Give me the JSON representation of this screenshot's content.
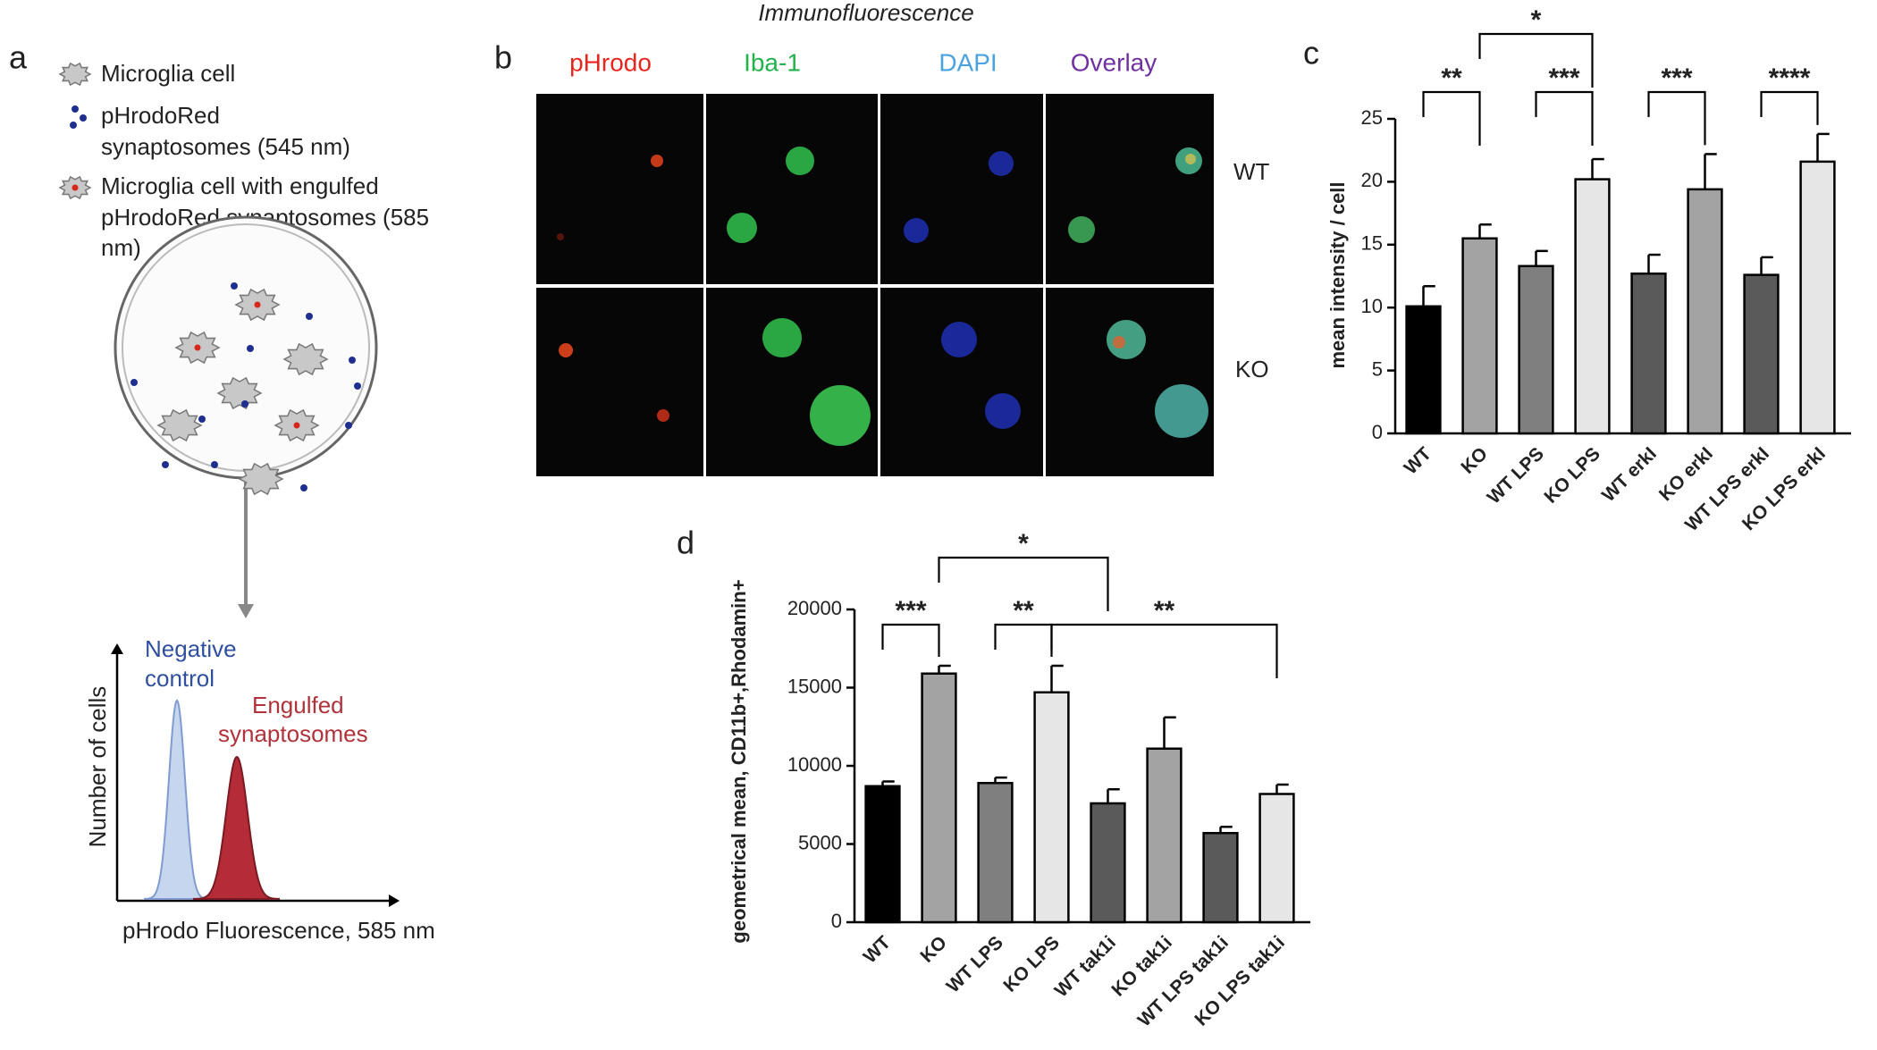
{
  "panel_labels": [
    "a",
    "b",
    "c",
    "d"
  ],
  "schematic": {
    "legend": [
      [
        "Microglia cell"
      ],
      [
        "pHrodoRed",
        "synaptosomes (545 nm)"
      ],
      [
        "Microglia cell with engulfed",
        "pHrodoRed synaptosomes (585",
        "nm)"
      ]
    ],
    "histogram": {
      "series": [
        [
          "Negative",
          "control"
        ],
        [
          "Engulfed",
          "synaptosomes"
        ]
      ],
      "y_label": "Number of cells",
      "x_label": "pHrodo Fluorescence, 585 nm"
    }
  },
  "microscopy": {
    "title": "Immunofluorescence",
    "columns": [
      "pHrodo",
      "Iba-1",
      "DAPI",
      "Overlay"
    ],
    "rows": [
      "WT",
      "KO"
    ]
  },
  "chart_data": [
    {
      "type": "bar",
      "y_label": "mean intensity / cell",
      "categories": [
        "WT",
        "KO",
        "WT LPS",
        "KO LPS",
        "WT erkI",
        "KO erkI",
        "WT LPS erkI",
        "KO LPS erkI"
      ],
      "values": [
        10.1,
        15.5,
        13.3,
        20.2,
        12.7,
        19.4,
        12.6,
        21.6
      ],
      "errors": [
        1.6,
        1.1,
        1.2,
        1.6,
        1.5,
        2.8,
        1.4,
        2.2
      ],
      "colors": [
        "#000000",
        "#a3a3a3",
        "#7f7f7f",
        "#e6e6e6",
        "#5a5a5a",
        "#a3a3a3",
        "#5a5a5a",
        "#e6e6e6"
      ],
      "ylim": [
        0,
        25
      ],
      "yticks": [
        0,
        5,
        10,
        15,
        20,
        25
      ],
      "annotations": [
        "**",
        "***",
        "***",
        "****",
        "*"
      ]
    },
    {
      "type": "bar",
      "y_label": "geometrical mean, CD11b+,Rhodamin+",
      "categories": [
        "WT",
        "KO",
        "WT LPS",
        "KO LPS",
        "WT tak1i",
        "KO tak1i",
        "WT LPS tak1i",
        "KO LPS tak1i"
      ],
      "values": [
        8700,
        15900,
        8900,
        14700,
        7600,
        11100,
        5700,
        8200
      ],
      "errors": [
        300,
        500,
        350,
        1700,
        900,
        2000,
        400,
        600
      ],
      "colors": [
        "#000000",
        "#a3a3a3",
        "#7f7f7f",
        "#e6e6e6",
        "#5a5a5a",
        "#a3a3a3",
        "#5a5a5a",
        "#e6e6e6"
      ],
      "ylim": [
        0,
        20000
      ],
      "yticks": [
        0,
        5000,
        10000,
        15000,
        20000
      ],
      "annotations": [
        "***",
        "**",
        "**",
        "*"
      ]
    }
  ]
}
